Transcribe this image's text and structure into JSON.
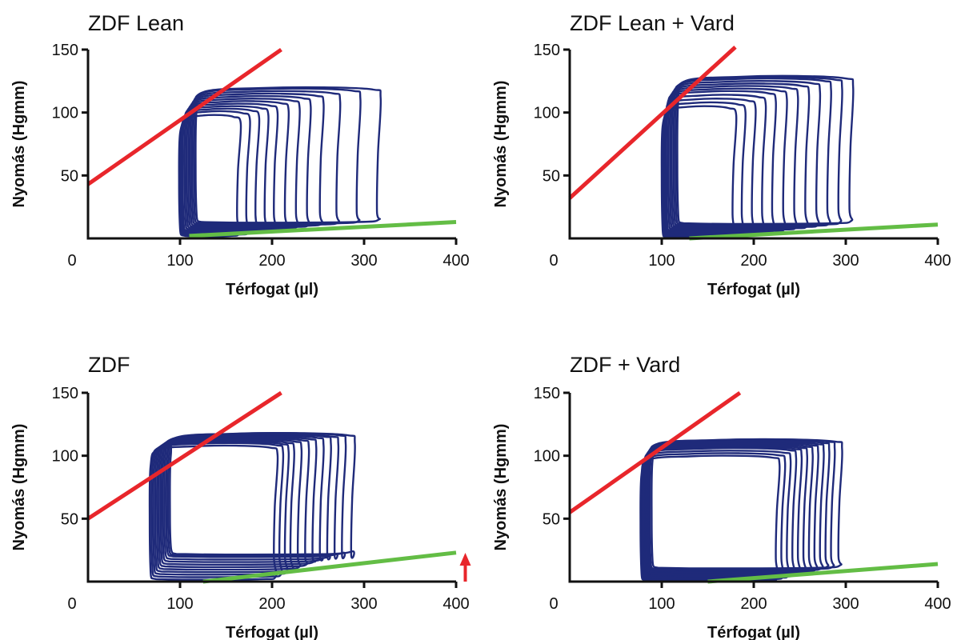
{
  "chart_data": [
    {
      "type": "line",
      "title": "ZDF Lean",
      "xlabel": "Térfogat (µl)",
      "ylabel": "Nyomás (Hgmm)",
      "xlim": [
        0,
        400
      ],
      "ylim": [
        0,
        150
      ],
      "x_ticks": [
        "0",
        "100",
        "200",
        "300",
        "400"
      ],
      "y_ticks": [
        "50",
        "100",
        "150"
      ],
      "espvr": {
        "color": "#e8262b",
        "points": [
          [
            0,
            43
          ],
          [
            210,
            150
          ]
        ]
      },
      "edpvr": {
        "color": "#63bd45",
        "points": [
          [
            110,
            2
          ],
          [
            400,
            13
          ]
        ]
      },
      "loops": {
        "color": "#1f2a7a",
        "count": 12,
        "edv": [
          160,
          170,
          180,
          190,
          200,
          212,
          224,
          236,
          250,
          268,
          290,
          312
        ],
        "esv": [
          102,
          103,
          104,
          105,
          106,
          108,
          110,
          112,
          114,
          116,
          118,
          120
        ],
        "peak_pressure": [
          98,
          101,
          103,
          105,
          107,
          109,
          111,
          113,
          115,
          117,
          119,
          120
        ],
        "min_pressure": [
          2,
          3,
          4,
          5,
          6,
          7,
          8,
          9,
          10,
          11,
          12,
          13
        ]
      }
    },
    {
      "type": "line",
      "title": "ZDF Lean + Vard",
      "xlabel": "Térfogat (µl)",
      "ylabel": "Nyomás (Hgmm)",
      "xlim": [
        0,
        400
      ],
      "ylim": [
        0,
        150
      ],
      "x_ticks": [
        "0",
        "100",
        "200",
        "300",
        "400"
      ],
      "y_ticks": [
        "50",
        "100",
        "150"
      ],
      "espvr": {
        "color": "#e8262b",
        "points": [
          [
            0,
            32
          ],
          [
            180,
            152
          ]
        ]
      },
      "edpvr": {
        "color": "#63bd45",
        "points": [
          [
            130,
            0
          ],
          [
            400,
            11
          ]
        ]
      },
      "loops": {
        "color": "#1f2a7a",
        "count": 12,
        "edv": [
          175,
          185,
          196,
          207,
          218,
          230,
          242,
          254,
          266,
          278,
          290,
          302
        ],
        "esv": [
          103,
          104,
          105,
          106,
          107,
          108,
          110,
          112,
          114,
          116,
          118,
          120
        ],
        "peak_pressure": [
          105,
          108,
          111,
          114,
          117,
          119,
          121,
          123,
          125,
          127,
          128,
          129
        ],
        "min_pressure": [
          1,
          2,
          3,
          4,
          5,
          6,
          7,
          8,
          9,
          10,
          11,
          12
        ]
      }
    },
    {
      "type": "line",
      "title": "ZDF",
      "xlabel": "Térfogat (µl)",
      "ylabel": "Nyomás (Hgmm)",
      "xlim": [
        0,
        400
      ],
      "ylim": [
        0,
        150
      ],
      "x_ticks": [
        "0",
        "100",
        "200",
        "300",
        "400"
      ],
      "y_ticks": [
        "50",
        "100",
        "150"
      ],
      "espvr": {
        "color": "#e8262b",
        "points": [
          [
            0,
            50
          ],
          [
            210,
            150
          ]
        ]
      },
      "edpvr": {
        "color": "#63bd45",
        "points": [
          [
            125,
            0
          ],
          [
            400,
            23
          ]
        ]
      },
      "annotation": {
        "type": "arrow",
        "color": "#e8262b",
        "direction": "up",
        "at_x": 410
      },
      "loops": {
        "color": "#1f2a7a",
        "count": 12,
        "edv": [
          200,
          206,
          212,
          218,
          226,
          234,
          242,
          250,
          258,
          266,
          274,
          284
        ],
        "esv": [
          70,
          72,
          74,
          76,
          78,
          80,
          82,
          84,
          86,
          88,
          90,
          92
        ],
        "peak_pressure": [
          108,
          110,
          111,
          112,
          113,
          114,
          115,
          116,
          117,
          117,
          118,
          118
        ],
        "min_pressure": [
          2,
          4,
          6,
          8,
          10,
          12,
          14,
          16,
          18,
          20,
          21,
          22
        ]
      }
    },
    {
      "type": "line",
      "title": "ZDF + Vard",
      "xlabel": "Térfogat (µl)",
      "ylabel": "Nyomás (Hgmm)",
      "xlim": [
        0,
        400
      ],
      "ylim": [
        0,
        150
      ],
      "x_ticks": [
        "0",
        "100",
        "200",
        "300",
        "400"
      ],
      "y_ticks": [
        "50",
        "100",
        "150"
      ],
      "espvr": {
        "color": "#e8262b",
        "points": [
          [
            0,
            55
          ],
          [
            185,
            150
          ]
        ]
      },
      "edpvr": {
        "color": "#63bd45",
        "points": [
          [
            150,
            0
          ],
          [
            400,
            14
          ]
        ]
      },
      "loops": {
        "color": "#1f2a7a",
        "count": 12,
        "edv": [
          222,
          228,
          234,
          240,
          246,
          252,
          258,
          264,
          270,
          276,
          282,
          290
        ],
        "esv": [
          80,
          81,
          82,
          83,
          84,
          85,
          86,
          87,
          88,
          89,
          90,
          92
        ],
        "peak_pressure": [
          100,
          102,
          104,
          106,
          107,
          108,
          109,
          110,
          111,
          112,
          113,
          113
        ],
        "min_pressure": [
          1,
          2,
          3,
          4,
          5,
          6,
          7,
          8,
          9,
          10,
          10,
          11
        ]
      }
    }
  ]
}
